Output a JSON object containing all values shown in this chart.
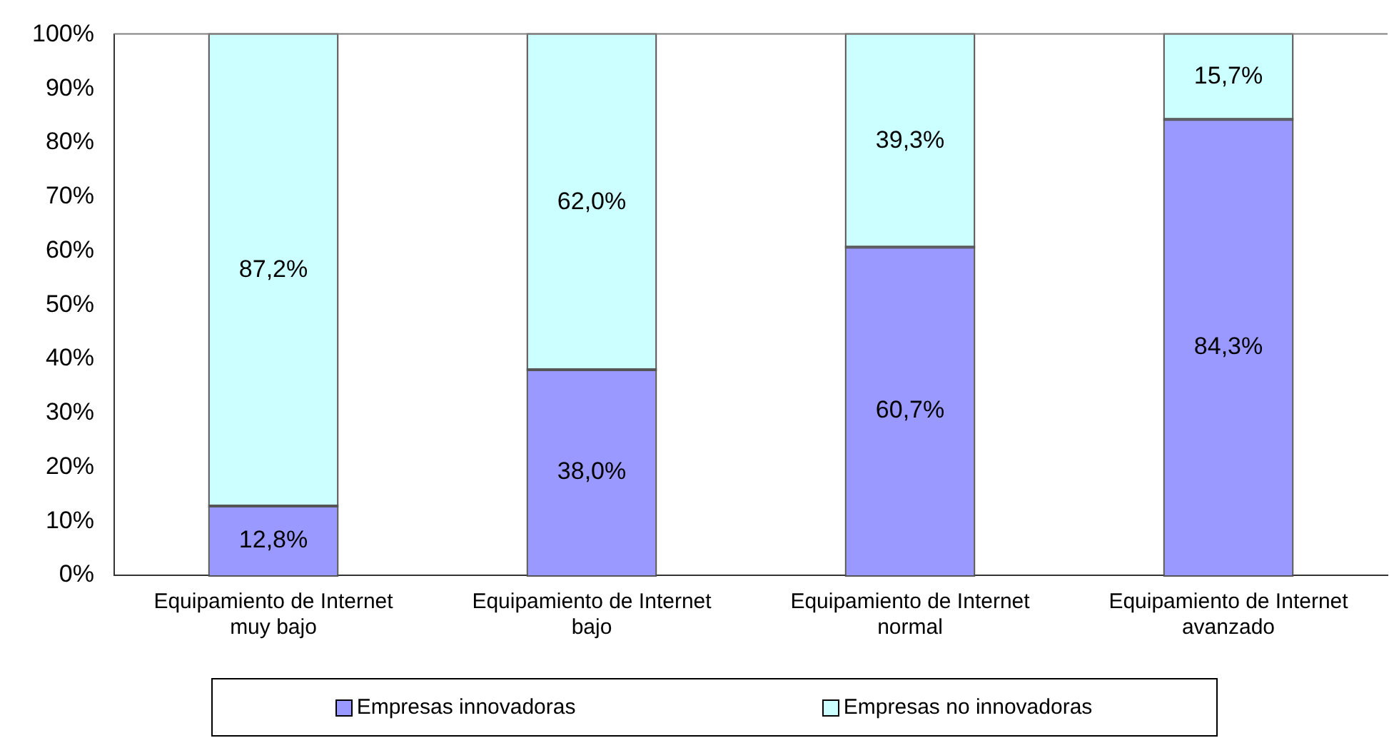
{
  "chart_data": {
    "type": "bar",
    "stacked": true,
    "categories": [
      "Equipamiento de Internet muy bajo",
      "Equipamiento de Internet bajo",
      "Equipamiento de Internet normal",
      "Equipamiento de Internet avanzado"
    ],
    "series": [
      {
        "name": "Empresas innovadoras",
        "color": "#9999ff",
        "values": [
          12.8,
          38.0,
          60.7,
          84.3
        ],
        "value_labels": [
          "12,8%",
          "38,0%",
          "60,7%",
          "84,3%"
        ]
      },
      {
        "name": "Empresas no innovadoras",
        "color": "#ccffff",
        "values": [
          87.2,
          62.0,
          39.3,
          15.7
        ],
        "value_labels": [
          "87,2%",
          "62,0%",
          "39,3%",
          "15,7%"
        ]
      }
    ],
    "ylim": [
      0,
      100
    ],
    "yticks": [
      {
        "value": 0,
        "label": "0%"
      },
      {
        "value": 10,
        "label": "10%"
      },
      {
        "value": 20,
        "label": "20%"
      },
      {
        "value": 30,
        "label": "30%"
      },
      {
        "value": 40,
        "label": "40%"
      },
      {
        "value": 50,
        "label": "50%"
      },
      {
        "value": 60,
        "label": "60%"
      },
      {
        "value": 70,
        "label": "70%"
      },
      {
        "value": 80,
        "label": "80%"
      },
      {
        "value": 90,
        "label": "90%"
      },
      {
        "value": 100,
        "label": "100%"
      }
    ],
    "grid": false,
    "legend": "bottom"
  }
}
